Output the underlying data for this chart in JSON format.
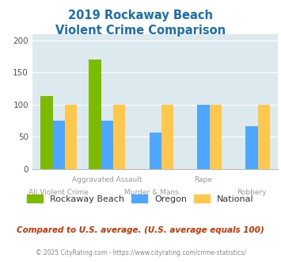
{
  "title_line1": "2019 Rockaway Beach",
  "title_line2": "Violent Crime Comparison",
  "categories": [
    "All Violent Crime",
    "Aggravated Assault",
    "Murder & Mans...",
    "Rape",
    "Robbery"
  ],
  "series": {
    "Rockaway Beach": [
      113,
      170,
      0,
      0,
      0
    ],
    "Oregon": [
      75,
      75,
      57,
      100,
      67
    ],
    "National": [
      100,
      100,
      100,
      100,
      100
    ]
  },
  "colors": {
    "Rockaway Beach": "#7cbb00",
    "Oregon": "#4da6ff",
    "National": "#ffc84d"
  },
  "ylim": [
    0,
    210
  ],
  "yticks": [
    0,
    50,
    100,
    150,
    200
  ],
  "plot_bg": "#dce9ee",
  "title_color": "#1a6faf",
  "footnote1": "Compared to U.S. average. (U.S. average equals 100)",
  "footnote2": "© 2025 CityRating.com - https://www.cityrating.com/crime-statistics/",
  "footnote1_color": "#cc3300",
  "footnote2_color": "#888888",
  "stagger_top": [
    "",
    "Aggravated Assault",
    "",
    "Rape",
    ""
  ],
  "stagger_bot": [
    "All Violent Crime",
    "",
    "Murder & Mans...",
    "",
    "Robbery"
  ]
}
